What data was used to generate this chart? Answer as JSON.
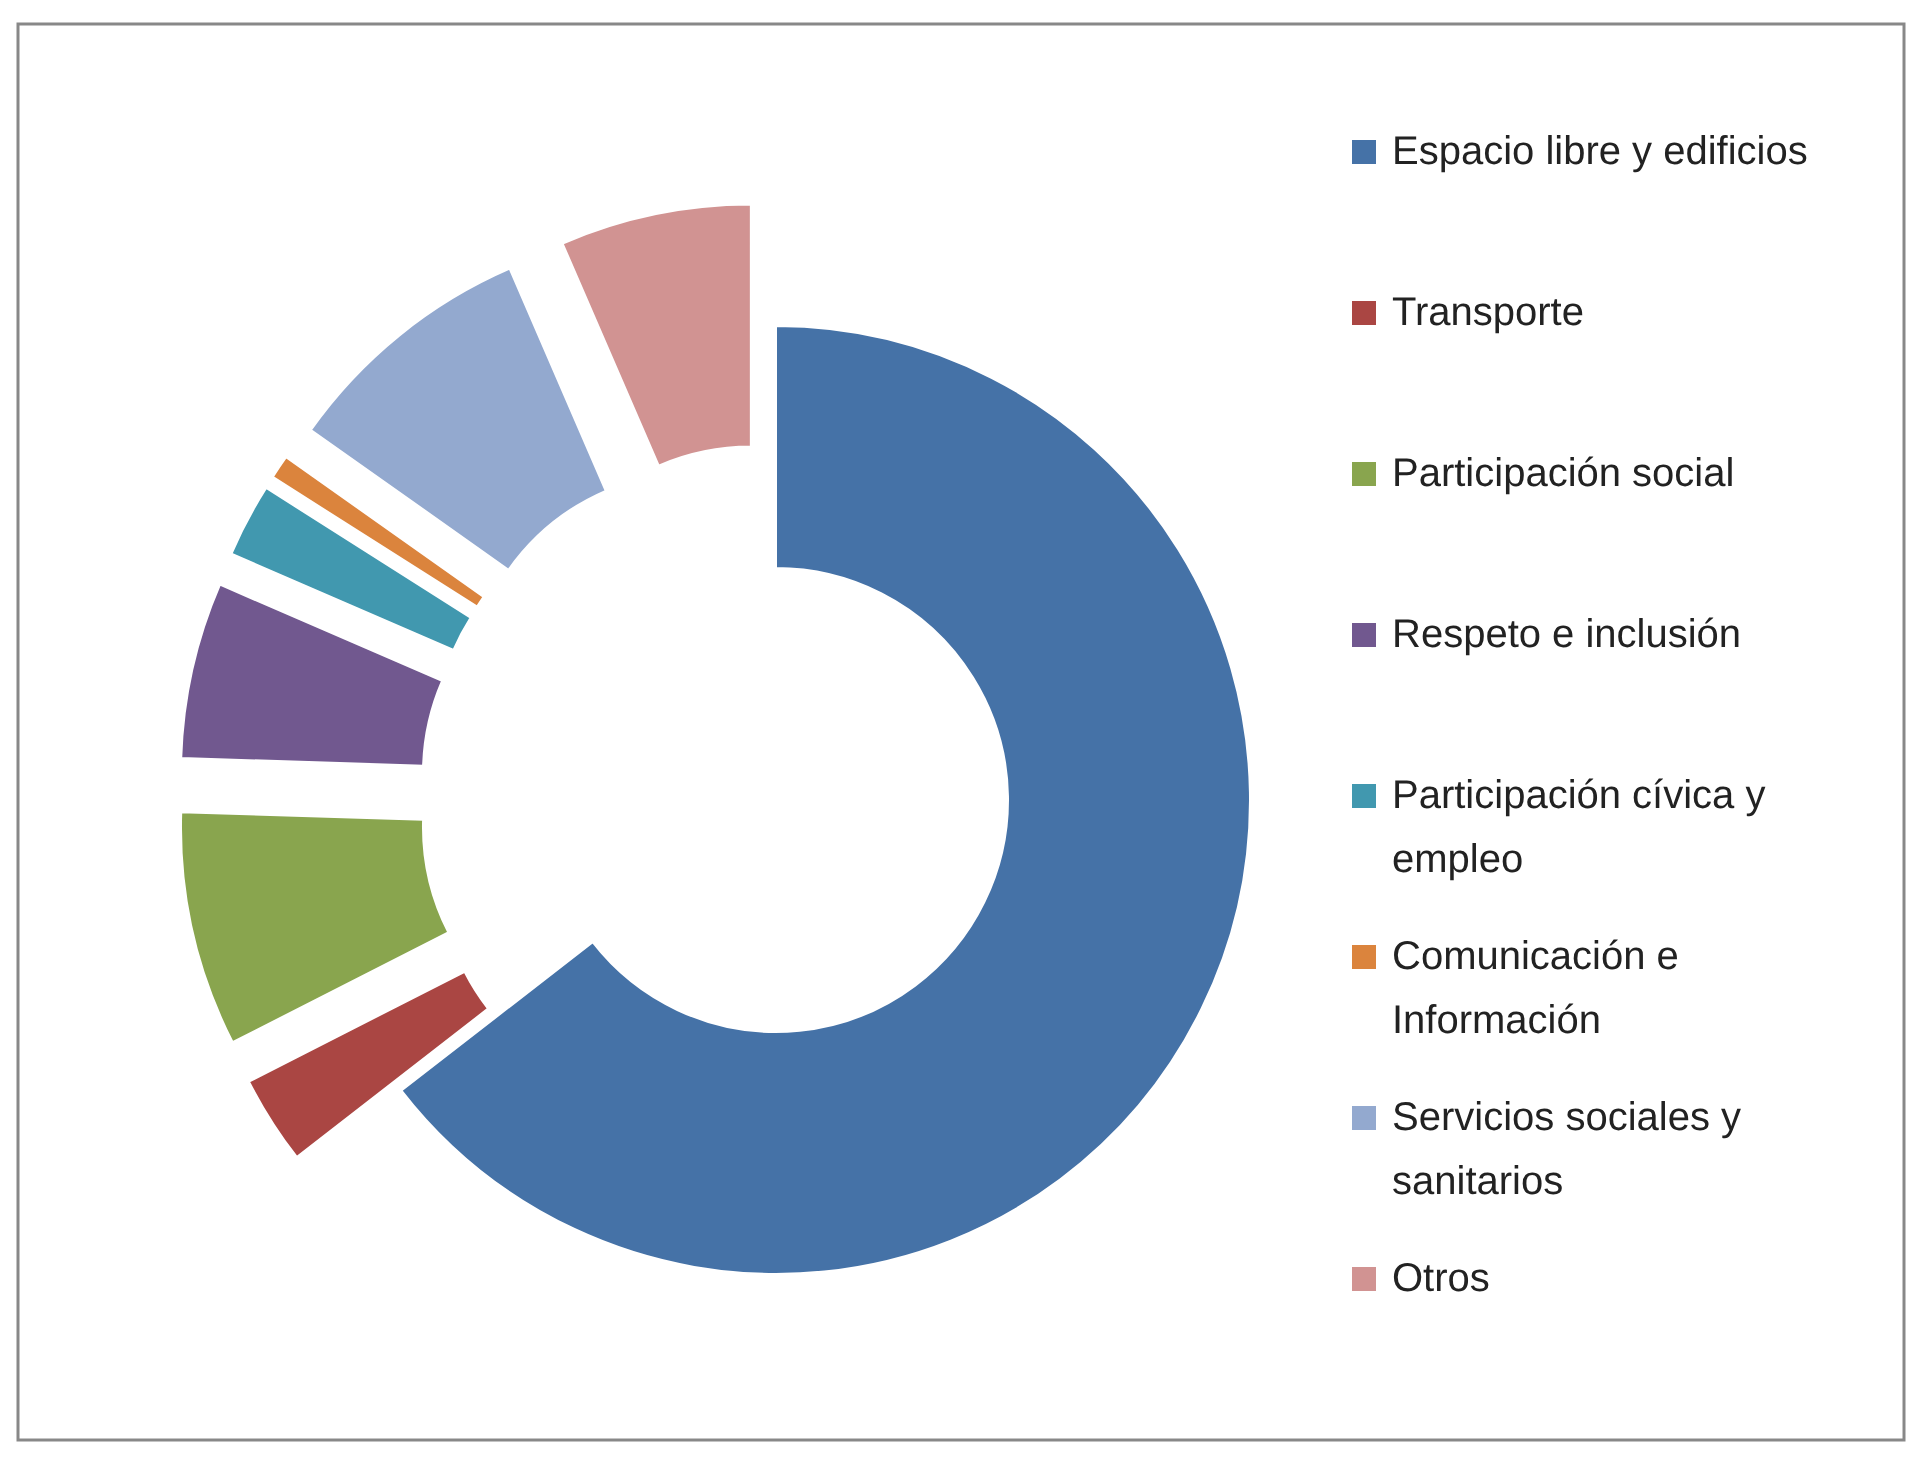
{
  "chart_data": {
    "type": "donut",
    "categories": [
      "Espacio libre y edificios",
      "Transporte",
      "Participación social",
      "Respeto e inclusión",
      "Participación cívica y empleo",
      "Comunicación e Información",
      "Servicios sociales y sanitarios",
      "Otros"
    ],
    "values": [
      64.5,
      3,
      8,
      6,
      2.5,
      0.8,
      8.7,
      6.5
    ],
    "colors": [
      "#4572a7",
      "#aa4643",
      "#89a54e",
      "#71588f",
      "#4198af",
      "#db843d",
      "#93a9cf",
      "#d19392"
    ],
    "legend": "right"
  }
}
